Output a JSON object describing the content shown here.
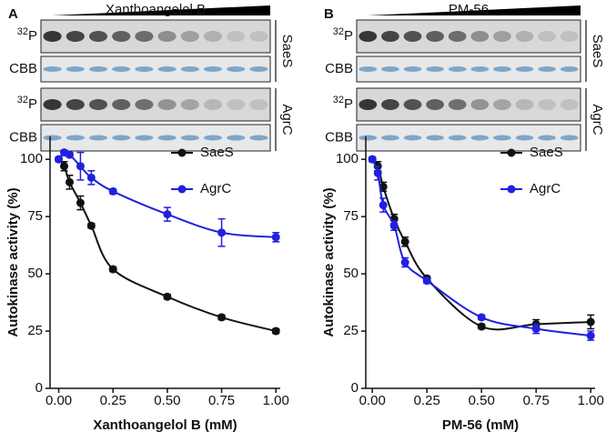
{
  "chart_data": [
    {
      "type": "scatter",
      "panel_label": "A",
      "blot": {
        "title": "Xanthoangelol B",
        "groups": [
          {
            "name": "SaeS",
            "rows": [
              {
                "sup": "32",
                "label": "P"
              },
              {
                "label": "CBB"
              }
            ]
          },
          {
            "name": "AgrC",
            "rows": [
              {
                "sup": "32",
                "label": "P"
              },
              {
                "label": "CBB"
              }
            ]
          }
        ]
      },
      "x_label": "Xanthoangelol B (mM)",
      "y_label": "Autokinase activity (%)",
      "xlim": [
        -0.04,
        1.02
      ],
      "ylim": [
        0,
        110
      ],
      "xticks": [
        {
          "value": 0,
          "label": "0.00"
        },
        {
          "value": 0.25,
          "label": "0.25"
        },
        {
          "value": 0.5,
          "label": "0.50"
        },
        {
          "value": 0.75,
          "label": "0.75"
        },
        {
          "value": 1,
          "label": "1.00"
        }
      ],
      "yticks": [
        0,
        25,
        50,
        75,
        100
      ],
      "grid": false,
      "legend": "upper right",
      "x": [
        0,
        0.025,
        0.05,
        0.1,
        0.15,
        0.25,
        0.5,
        0.75,
        1
      ],
      "series": [
        {
          "name": "SaeS",
          "color": "#111111",
          "values": [
            100,
            97,
            90,
            81,
            71,
            52,
            40,
            31,
            25
          ],
          "errors": [
            1,
            2,
            3,
            3,
            1,
            1,
            1,
            1,
            1
          ]
        },
        {
          "name": "AgrC",
          "color": "#2020e0",
          "values": [
            100,
            103,
            102,
            97,
            92,
            86,
            76,
            68,
            66
          ],
          "errors": [
            1,
            1,
            1,
            6,
            3,
            1,
            3,
            6,
            2
          ]
        }
      ]
    },
    {
      "type": "scatter",
      "panel_label": "B",
      "blot": {
        "title": "PM-56",
        "groups": [
          {
            "name": "SaeS",
            "rows": [
              {
                "sup": "32",
                "label": "P"
              },
              {
                "label": "CBB"
              }
            ]
          },
          {
            "name": "AgrC",
            "rows": [
              {
                "sup": "32",
                "label": "P"
              },
              {
                "label": "CBB"
              }
            ]
          }
        ]
      },
      "x_label": "PM-56 (mM)",
      "y_label": "Autokinase activity (%)",
      "xlim": [
        -0.03,
        1.02
      ],
      "ylim": [
        0,
        110
      ],
      "xticks": [
        {
          "value": 0,
          "label": "0.00"
        },
        {
          "value": 0.25,
          "label": "0.25"
        },
        {
          "value": 0.5,
          "label": "0.50"
        },
        {
          "value": 0.75,
          "label": "0.75"
        },
        {
          "value": 1,
          "label": "1.00"
        }
      ],
      "yticks": [
        0,
        25,
        50,
        75,
        100
      ],
      "grid": false,
      "legend": "upper right",
      "x": [
        0,
        0.025,
        0.05,
        0.1,
        0.15,
        0.25,
        0.5,
        0.75,
        1
      ],
      "series": [
        {
          "name": "SaeS",
          "color": "#111111",
          "values": [
            100,
            97,
            88,
            74,
            64,
            48,
            27,
            28,
            29
          ],
          "errors": [
            1,
            2,
            2,
            2,
            2,
            1,
            1,
            2,
            3
          ]
        },
        {
          "name": "AgrC",
          "color": "#2020e0",
          "values": [
            100,
            94,
            80,
            71,
            55,
            47,
            31,
            26,
            23
          ],
          "errors": [
            1,
            3,
            3,
            2,
            2,
            1,
            1,
            2,
            2
          ]
        }
      ]
    }
  ]
}
